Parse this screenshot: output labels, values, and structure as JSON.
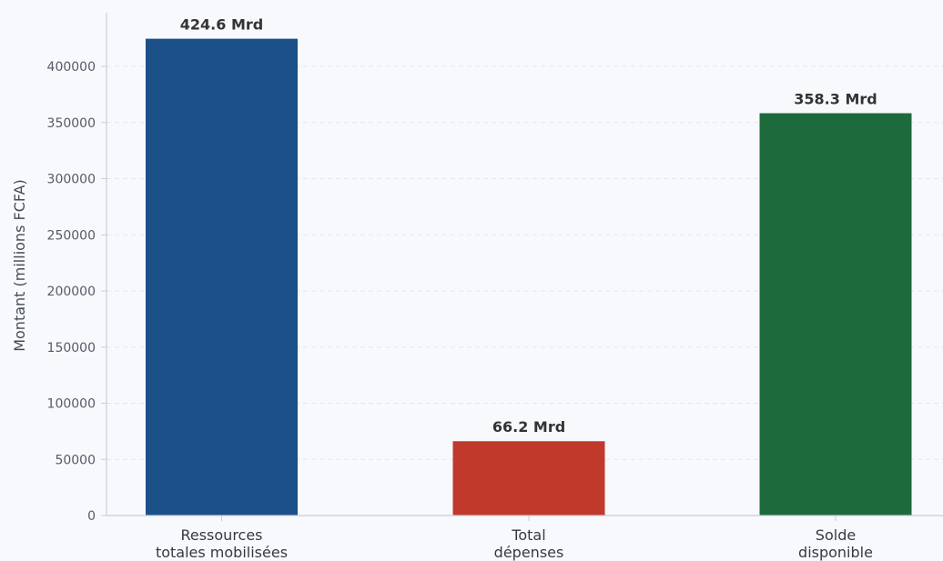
{
  "chart_data": {
    "type": "bar",
    "categories": [
      [
        "Ressources",
        "totales mobilisées"
      ],
      [
        "Total",
        "dépenses"
      ],
      [
        "Solde",
        "disponible"
      ]
    ],
    "values": [
      424600,
      66200,
      358300
    ],
    "data_labels": [
      "424.6 Mrd",
      "66.2 Mrd",
      "358.3 Mrd"
    ],
    "colors": [
      "#1b4f88",
      "#c0392b",
      "#1d6b3d"
    ],
    "ylabel": "Montant (millions FCFA)",
    "xlabel": "",
    "ylim": [
      0,
      440000
    ],
    "yticks": [
      0,
      50000,
      100000,
      150000,
      200000,
      250000,
      300000,
      350000,
      400000
    ],
    "ytick_labels": [
      "0",
      "50000",
      "100000",
      "150000",
      "200000",
      "250000",
      "300000",
      "350000",
      "400000"
    ],
    "grid": "horizontal dashed",
    "legend": "none"
  }
}
